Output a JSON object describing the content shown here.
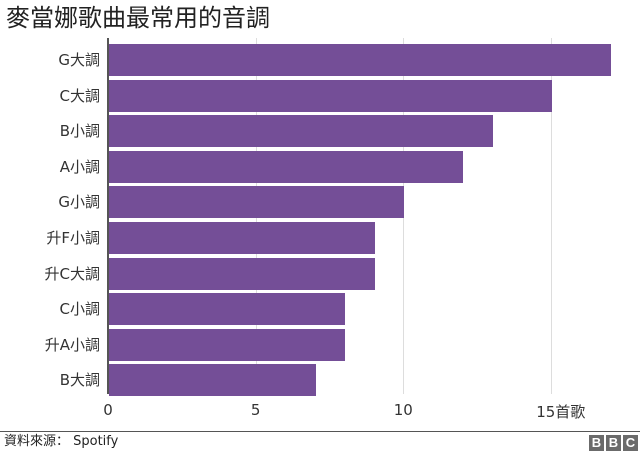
{
  "chart_data": {
    "type": "bar",
    "orientation": "horizontal",
    "title": "麥當娜歌曲最常用的音調",
    "categories": [
      "G大調",
      "C大調",
      "B小調",
      "A小調",
      "G小調",
      "升F小調",
      "升C大調",
      "C小調",
      "升A小調",
      "B大調"
    ],
    "values": [
      17,
      15,
      13,
      12,
      10,
      9,
      9,
      8,
      8,
      7
    ],
    "xlabel": "首歌",
    "ylabel": "",
    "xlim": [
      0,
      17.5
    ],
    "xticks": [
      "0",
      "5",
      "10",
      "15首歌"
    ],
    "grid": true,
    "bar_color": "#744e97",
    "source": "資料來源： Spotify"
  },
  "header": {
    "title": "麥當娜歌曲最常用的音調"
  },
  "footer": {
    "source": "資料來源： Spotify",
    "logo": [
      "B",
      "B",
      "C"
    ]
  }
}
